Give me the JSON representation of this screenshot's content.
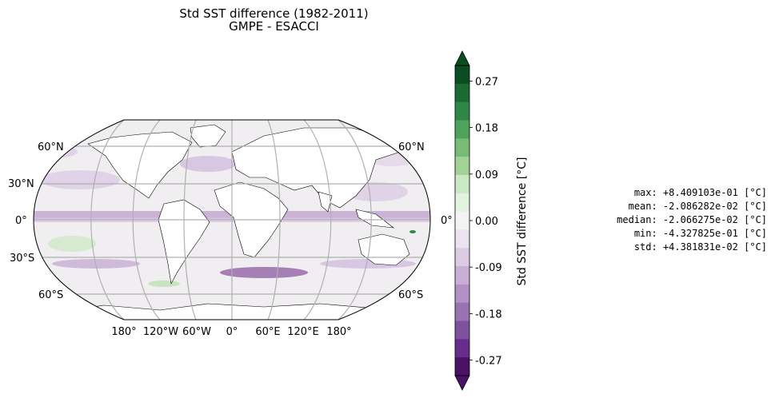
{
  "title": {
    "line1": "Std SST difference (1982-2011)",
    "line2": "GMPE - ESACCI"
  },
  "map": {
    "projection": "Robinson",
    "lat_labels_left": [
      "60°N",
      "30°N",
      "0°",
      "30°S",
      "60°S"
    ],
    "lat_labels_right": [
      "60°N",
      "0°",
      "60°S"
    ],
    "lon_labels": [
      "180°",
      "120°W",
      "60°W",
      "0°",
      "60°E",
      "120°E",
      "180°"
    ],
    "grid_color": "#b0b0b0",
    "land_color": "#ffffff",
    "ocean_base_color": "#f0eef0",
    "negative_color": "#8e5ba1",
    "positive_color": "#2f8f46"
  },
  "colorbar": {
    "label": "Std SST difference [°C]",
    "tick_labels": [
      "0.27",
      "0.18",
      "0.09",
      "0.00",
      "-0.09",
      "-0.18",
      "-0.27"
    ],
    "range": [
      -0.3,
      0.3
    ],
    "colors_top_to_bottom": [
      "#0b4d22",
      "#1b6a33",
      "#2e8746",
      "#4ea35a",
      "#77bb75",
      "#a1d399",
      "#c9e8c3",
      "#e3f3df",
      "#f5f2f5",
      "#ebe3ef",
      "#dccbe3",
      "#c9afd5",
      "#b292c5",
      "#9972b2",
      "#7e519f",
      "#662e8a",
      "#4a1266"
    ]
  },
  "stats": {
    "max": "max: +8.409103e-01 [°C]",
    "mean": "mean: -2.086282e-02 [°C]",
    "median": "median: -2.066275e-02 [°C]",
    "min": "min: -4.327825e-01 [°C]",
    "std": "std: +4.381831e-02 [°C]"
  }
}
